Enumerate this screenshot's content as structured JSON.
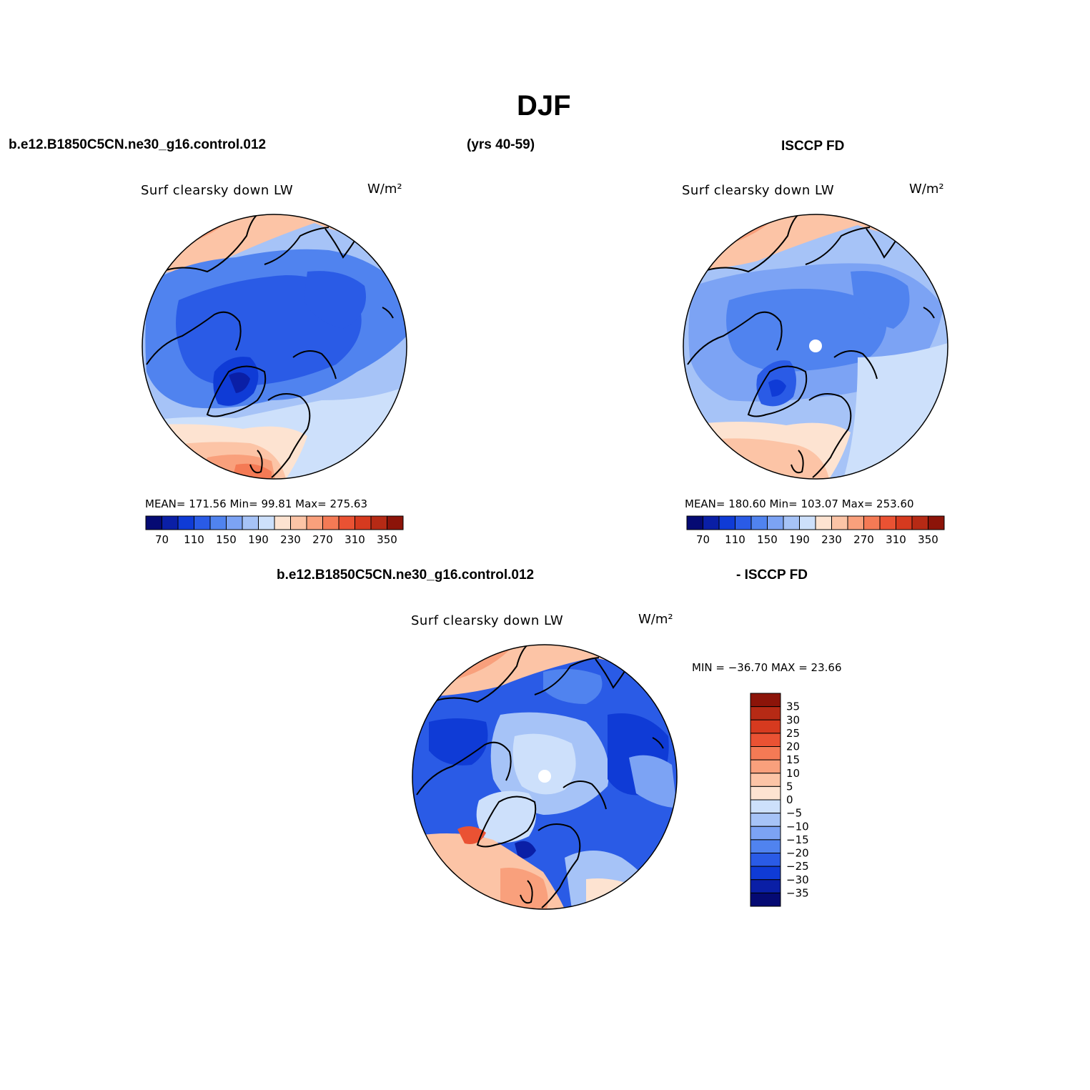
{
  "page": {
    "title": "DJF",
    "case_name": "b.e12.B1850C5CN.ne30_g16.control.012",
    "years": "(yrs 40-59)",
    "obs_name": "ISCCP FD",
    "diff_case_name": "b.e12.B1850C5CN.ne30_g16.control.012",
    "diff_obs_name": "- ISCCP FD"
  },
  "panels": {
    "model": {
      "variable": "Surf clearsky down LW",
      "units": "W/m²",
      "stats": "MEAN= 171.56   Min=  99.81   Max= 275.63"
    },
    "obs": {
      "variable": "Surf clearsky down LW",
      "units": "W/m²",
      "stats": "MEAN= 180.60   Min= 103.07   Max= 253.60"
    },
    "diff": {
      "variable": "Surf clearsky down LW",
      "units": "W/m²",
      "stats": "MIN = −36.70 MAX =  23.66"
    }
  },
  "colorbars": {
    "abs": {
      "colors": [
        "#050a73",
        "#0a1fa6",
        "#0f3bd6",
        "#2a5be6",
        "#5083ef",
        "#7ca3f4",
        "#a6c3f7",
        "#cde0fb",
        "#fde3d1",
        "#fcc4a6",
        "#f9a07c",
        "#f47a55",
        "#ea5233",
        "#d63a1f",
        "#b62a15",
        "#8c1409"
      ],
      "labels": [
        "70",
        "110",
        "150",
        "190",
        "230",
        "270",
        "310",
        "350"
      ]
    },
    "diff": {
      "colors": [
        "#050a73",
        "#0a1fa6",
        "#0f3bd6",
        "#2a5be6",
        "#5083ef",
        "#7ca3f4",
        "#a6c3f7",
        "#cde0fb",
        "#fde3d1",
        "#fcc4a6",
        "#f9a07c",
        "#f47a55",
        "#ea5233",
        "#d63a1f",
        "#b62a15",
        "#8c1409"
      ],
      "labels": [
        "35",
        "30",
        "25",
        "20",
        "15",
        "10",
        "5",
        "0",
        "−5",
        "−10",
        "−15",
        "−20",
        "−25",
        "−30",
        "−35"
      ]
    }
  },
  "chart_data": [
    {
      "type": "heatmap",
      "title": "Surf clearsky down LW",
      "units": "W/m²",
      "projection": "north polar stereographic",
      "summary": {
        "mean": 171.56,
        "min": 99.81,
        "max": 275.63
      },
      "levels": [
        70,
        90,
        110,
        130,
        150,
        170,
        190,
        210,
        230,
        250,
        270,
        290,
        310,
        330,
        350
      ]
    },
    {
      "type": "heatmap",
      "title": "Surf clearsky down LW",
      "units": "W/m²",
      "projection": "north polar stereographic",
      "summary": {
        "mean": 180.6,
        "min": 103.07,
        "max": 253.6
      },
      "levels": [
        70,
        90,
        110,
        130,
        150,
        170,
        190,
        210,
        230,
        250,
        270,
        290,
        310,
        330,
        350
      ]
    },
    {
      "type": "heatmap",
      "title": "Surf clearsky down LW",
      "units": "W/m²",
      "projection": "north polar stereographic",
      "summary": {
        "min": -36.7,
        "max": 23.66
      },
      "levels": [
        -35,
        -30,
        -25,
        -20,
        -15,
        -10,
        -5,
        0,
        5,
        10,
        15,
        20,
        25,
        30,
        35
      ]
    }
  ]
}
